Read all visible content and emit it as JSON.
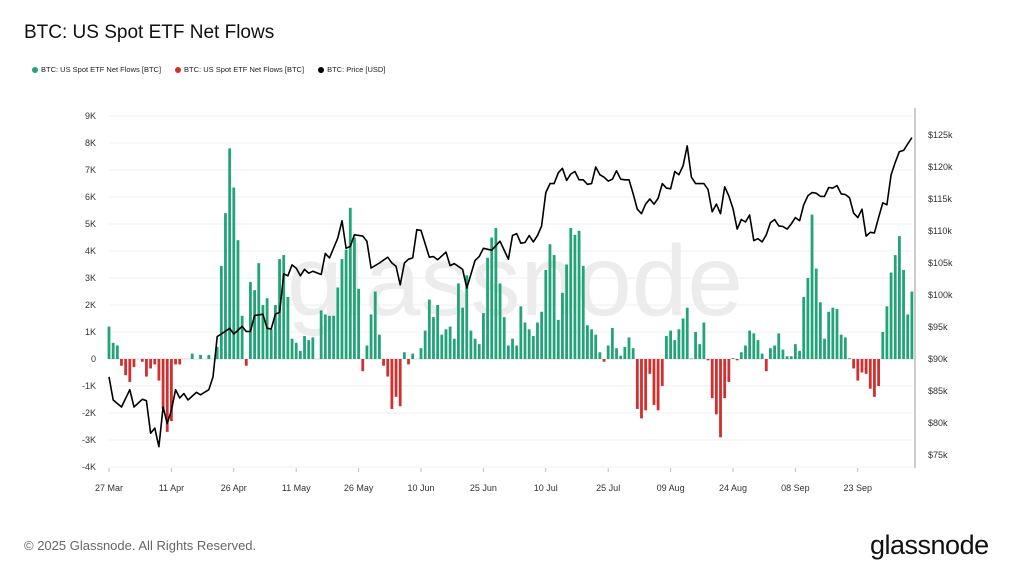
{
  "chart_data": {
    "type": "bar",
    "title": "BTC: US Spot ETF Net Flows",
    "legend": [
      {
        "label": "BTC: US Spot ETF Net Flows [BTC]",
        "color": "#22a37a"
      },
      {
        "label": "BTC: US Spot ETF Net Flows [BTC]",
        "color": "#d32f2f"
      },
      {
        "label": "BTC: Price [USD]",
        "color": "#000000"
      }
    ],
    "legend_position": "top-left",
    "x_ticks": [
      "27 Mar",
      "11 Apr",
      "26 Apr",
      "11 May",
      "26 May",
      "10 Jun",
      "25 Jun",
      "10 Jul",
      "25 Jul",
      "09 Aug",
      "24 Aug",
      "08 Sep",
      "23 Sep"
    ],
    "x_tick_interval_days": 15,
    "start_date": "27 Mar",
    "y_left": {
      "label": "Net Flows [BTC]",
      "ticks": [
        "-4K",
        "-3K",
        "-2K",
        "-1K",
        "0",
        "1K",
        "2K",
        "3K",
        "4K",
        "5K",
        "6K",
        "7K",
        "8K",
        "9K"
      ],
      "range_k": [
        -4,
        9
      ]
    },
    "y_right": {
      "label": "Price [USD]",
      "ticks": [
        "$75k",
        "$80k",
        "$85k",
        "$90k",
        "$95k",
        "$100k",
        "$105k",
        "$110k",
        "$115k",
        "$120k",
        "$125k"
      ],
      "range_k": [
        73,
        128
      ]
    },
    "grid": true,
    "flows_k_btc_daily": [
      1.2,
      0.6,
      0.5,
      -0.25,
      -0.6,
      -0.85,
      -0.3,
      0,
      -0.1,
      -0.65,
      -0.35,
      -0.2,
      -0.8,
      -1.85,
      -2.7,
      -2.3,
      -0.2,
      -0.2,
      0,
      0,
      0.2,
      0,
      0.15,
      0,
      0.15,
      0,
      0.45,
      3.45,
      5.4,
      7.8,
      6.35,
      4.4,
      1.6,
      -0.25,
      2.85,
      2.55,
      3.55,
      2.0,
      2.25,
      1.1,
      2.0,
      3.7,
      3.85,
      2.3,
      0.75,
      0.6,
      0.3,
      0.85,
      0.7,
      0.8,
      0,
      1.8,
      1.65,
      1.6,
      1.6,
      2.65,
      3.7,
      4.05,
      5.6,
      4.5,
      2.6,
      -0.45,
      0.5,
      1.65,
      2.5,
      0.9,
      -0.25,
      -0.65,
      -1.85,
      -1.4,
      -1.75,
      0.25,
      -0.2,
      0.2,
      0,
      0.4,
      1.05,
      2.2,
      1.55,
      2.0,
      0.9,
      1.1,
      1.2,
      0.75,
      2.8,
      1.9,
      3.1,
      1.05,
      0.75,
      0.55,
      1.7,
      3.75,
      4.5,
      4.85,
      2.8,
      1.55,
      0.5,
      0.75,
      0.5,
      1.95,
      1.35,
      1.1,
      0.85,
      1.35,
      1.75,
      3.3,
      4.25,
      3.85,
      1.45,
      2.45,
      3.5,
      4.85,
      4.6,
      4.75,
      3.45,
      1.25,
      1.1,
      0.9,
      0.25,
      -0.1,
      0.5,
      1.15,
      0.4,
      0.12,
      0.45,
      0.8,
      0.4,
      -1.85,
      -2.2,
      -1.9,
      -0.55,
      -1.7,
      -1.9,
      -1.0,
      0.85,
      1.05,
      0.7,
      1.1,
      1.5,
      1.9,
      0.02,
      1.0,
      0.55,
      1.35,
      -0.05,
      -1.45,
      -2.05,
      -2.9,
      -1.45,
      -0.85,
      0.03,
      -0.05,
      0.25,
      0.5,
      1.05,
      0.95,
      0.7,
      0.2,
      -0.45,
      0.4,
      0.5,
      0.95,
      0.35,
      0.1,
      0.1,
      0.55,
      0.3,
      2.3,
      3.0,
      5.35,
      3.35,
      2.1,
      0.75,
      1.75,
      1.9,
      1.85,
      0.9,
      0.8,
      0.03,
      -0.35,
      -0.8,
      -0.5,
      -0.55,
      -1.1,
      -1.4,
      -1.0,
      1.0,
      1.95,
      3.2,
      3.85,
      4.55,
      3.3,
      1.65,
      2.5
    ],
    "price_k_usd_by_day": [
      [
        0,
        87.2
      ],
      [
        1,
        83.6
      ],
      [
        3,
        82.5
      ],
      [
        5,
        85.2
      ],
      [
        6,
        82.5
      ],
      [
        8,
        83.7
      ],
      [
        9,
        83.5
      ],
      [
        10,
        78.4
      ],
      [
        11,
        79.2
      ],
      [
        12,
        76.3
      ],
      [
        13,
        82.5
      ],
      [
        14,
        79.9
      ],
      [
        15,
        82
      ],
      [
        16,
        85.2
      ],
      [
        17,
        83.9
      ],
      [
        18,
        84.6
      ],
      [
        19,
        83.6
      ],
      [
        21,
        84.8
      ],
      [
        22,
        84.4
      ],
      [
        24,
        85.2
      ],
      [
        25,
        87.2
      ],
      [
        26,
        93.5
      ],
      [
        27,
        93.9
      ],
      [
        29,
        94.8
      ],
      [
        30,
        93.9
      ],
      [
        32,
        95.1
      ],
      [
        33,
        94.3
      ],
      [
        34,
        94.3
      ],
      [
        35,
        96.8
      ],
      [
        37,
        97.0
      ],
      [
        38,
        94.8
      ],
      [
        39,
        94.7
      ],
      [
        40,
        97.0
      ],
      [
        41,
        97.3
      ],
      [
        42,
        103.3
      ],
      [
        43,
        103.0
      ],
      [
        44,
        104.7
      ],
      [
        45,
        104.2
      ],
      [
        46,
        103.0
      ],
      [
        47,
        104.0
      ],
      [
        48,
        103.4
      ],
      [
        49,
        103.7
      ],
      [
        51,
        103.2
      ],
      [
        52,
        106.5
      ],
      [
        53,
        105.8
      ],
      [
        55,
        108.9
      ],
      [
        56,
        111.6
      ],
      [
        57,
        107.3
      ],
      [
        58,
        107.6
      ],
      [
        59,
        109.4
      ],
      [
        61,
        109.2
      ],
      [
        62,
        108.4
      ],
      [
        63,
        104.2
      ],
      [
        65,
        105
      ],
      [
        67,
        105.9
      ],
      [
        68,
        105
      ],
      [
        69,
        104.5
      ],
      [
        70,
        101.6
      ],
      [
        71,
        105
      ],
      [
        72,
        105.6
      ],
      [
        73,
        105.8
      ],
      [
        74,
        110.2
      ],
      [
        75,
        110.1
      ],
      [
        77,
        105.9
      ],
      [
        78,
        106
      ],
      [
        79,
        105.5
      ],
      [
        81,
        106.7
      ],
      [
        82,
        104.6
      ],
      [
        83,
        104.9
      ],
      [
        85,
        104
      ],
      [
        86,
        101.1
      ],
      [
        88,
        105.4
      ],
      [
        89,
        106
      ],
      [
        90,
        107.3
      ],
      [
        92,
        107
      ],
      [
        94,
        108.4
      ],
      [
        96,
        105.6
      ],
      [
        97,
        109.3
      ],
      [
        98,
        109.6
      ],
      [
        99,
        108.1
      ],
      [
        100,
        108.2
      ],
      [
        101,
        109.3
      ],
      [
        102,
        108.3
      ],
      [
        103,
        109.3
      ],
      [
        104,
        110.8
      ],
      [
        105,
        116
      ],
      [
        106,
        117.4
      ],
      [
        107,
        117.4
      ],
      [
        108,
        119.1
      ],
      [
        109,
        119.8
      ],
      [
        110,
        117.9
      ],
      [
        111,
        118.9
      ],
      [
        112,
        119.3
      ],
      [
        113,
        118
      ],
      [
        114,
        118
      ],
      [
        115,
        117.3
      ],
      [
        116,
        117.4
      ],
      [
        117,
        120
      ],
      [
        118,
        118.8
      ],
      [
        119,
        118.4
      ],
      [
        120,
        117.8
      ],
      [
        121,
        118.1
      ],
      [
        122,
        119.4
      ],
      [
        123,
        118.1
      ],
      [
        124,
        118
      ],
      [
        125,
        118
      ],
      [
        126,
        115.8
      ],
      [
        127,
        113.4
      ],
      [
        128,
        112.7
      ],
      [
        129,
        114.2
      ],
      [
        130,
        115
      ],
      [
        131,
        114.2
      ],
      [
        132,
        115.1
      ],
      [
        133,
        117.4
      ],
      [
        134,
        116.7
      ],
      [
        135,
        116.6
      ],
      [
        136,
        119.3
      ],
      [
        137,
        118.8
      ],
      [
        138,
        120.2
      ],
      [
        139,
        123.3
      ],
      [
        140,
        118.4
      ],
      [
        141,
        117.4
      ],
      [
        142,
        117.4
      ],
      [
        143,
        117.4
      ],
      [
        144,
        116.5
      ],
      [
        145,
        113
      ],
      [
        146,
        114.2
      ],
      [
        147,
        112.7
      ],
      [
        148,
        116.9
      ],
      [
        149,
        115.5
      ],
      [
        150,
        113.5
      ],
      [
        151,
        110.3
      ],
      [
        152,
        111.8
      ],
      [
        153,
        111.4
      ],
      [
        154,
        112.5
      ],
      [
        155,
        108.5
      ],
      [
        156,
        108.8
      ],
      [
        157,
        108.3
      ],
      [
        158,
        109.4
      ],
      [
        159,
        111.3
      ],
      [
        160,
        111.8
      ],
      [
        161,
        110.8
      ],
      [
        162,
        110.7
      ],
      [
        163,
        110.3
      ],
      [
        164,
        111.1
      ],
      [
        165,
        112.1
      ],
      [
        166,
        111.6
      ],
      [
        167,
        114.1
      ],
      [
        168,
        115.5
      ],
      [
        169,
        116
      ],
      [
        170,
        115.9
      ],
      [
        171,
        115.4
      ],
      [
        172,
        115.4
      ],
      [
        173,
        116.8
      ],
      [
        174,
        116.7
      ],
      [
        175,
        117.1
      ],
      [
        176,
        115.8
      ],
      [
        177,
        115.7
      ],
      [
        178,
        115.2
      ],
      [
        179,
        112.8
      ],
      [
        180,
        112.1
      ],
      [
        181,
        113.4
      ],
      [
        182,
        109.2
      ],
      [
        183,
        109.8
      ],
      [
        184,
        109.7
      ],
      [
        185,
        112.1
      ],
      [
        186,
        114.4
      ],
      [
        187,
        114.1
      ],
      [
        188,
        118.8
      ],
      [
        189,
        120.7
      ],
      [
        190,
        122.4
      ],
      [
        191,
        122.6
      ],
      [
        192,
        123.6
      ],
      [
        193,
        124.6
      ]
    ],
    "colors": {
      "inflow": "#22a37a",
      "outflow": "#d32f2f",
      "price": "#000000",
      "grid": "#efefef"
    }
  },
  "watermark": "glassnode",
  "footer": "© 2025 Glassnode. All Rights Reserved.",
  "logo": "glassnode"
}
